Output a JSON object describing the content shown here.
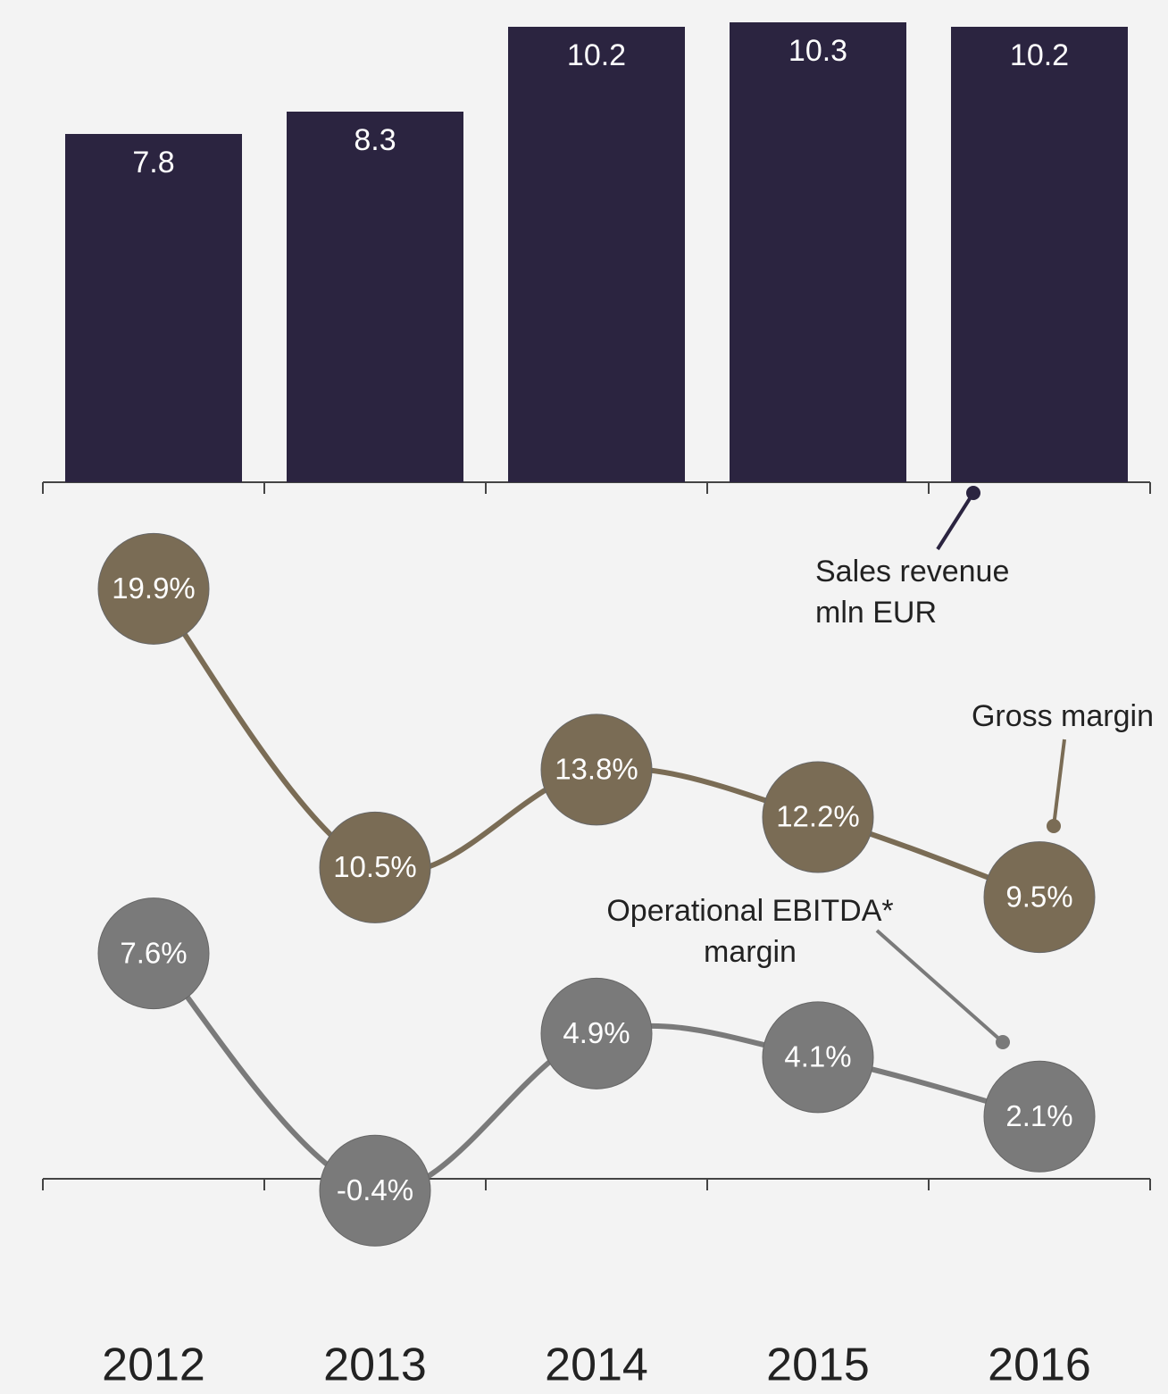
{
  "chart_data": {
    "type": "bar",
    "categories": [
      "2012",
      "2013",
      "2014",
      "2015",
      "2016"
    ],
    "ylim": [
      0,
      10.8
    ],
    "y2lim": [
      0,
      20
    ],
    "series": [
      {
        "name": "Sales revenue mln EUR",
        "type": "bar",
        "color": "#2b2440",
        "values": [
          7.8,
          8.3,
          10.2,
          10.3,
          10.2
        ]
      },
      {
        "name": "Gross margin",
        "type": "line",
        "axis": "y2",
        "color": "#7a6c55",
        "values": [
          19.9,
          10.5,
          13.8,
          12.2,
          9.5
        ],
        "value_labels": [
          "19.9%",
          "10.5%",
          "13.8%",
          "12.2%",
          "9.5%"
        ]
      },
      {
        "name": "Operational EBITDA* margin",
        "type": "line",
        "axis": "y2",
        "color": "#7a7a7a",
        "values": [
          7.6,
          -0.4,
          4.9,
          4.1,
          2.1
        ],
        "value_labels": [
          "7.6%",
          "-0.4%",
          "4.9%",
          "4.1%",
          "2.1%"
        ]
      }
    ]
  }
}
